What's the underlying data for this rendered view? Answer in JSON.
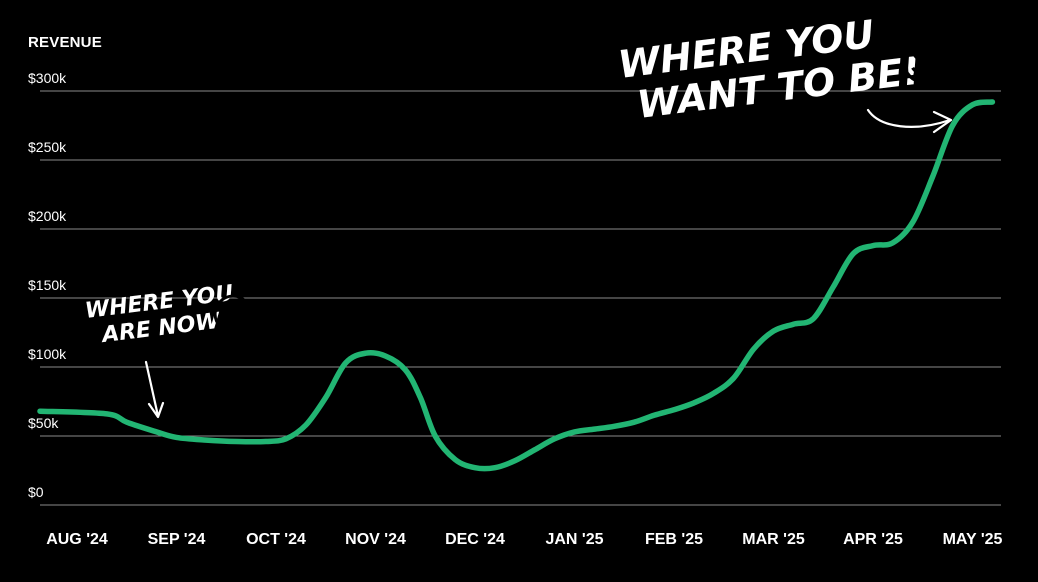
{
  "chart_data": {
    "type": "line",
    "title": "REVENUE",
    "xlabel": "",
    "ylabel": "",
    "ylim": [
      0,
      300000
    ],
    "yticks": [
      0,
      50000,
      100000,
      150000,
      200000,
      250000,
      300000
    ],
    "ytick_labels": [
      "$0",
      "$50k",
      "$100k",
      "$150k",
      "$200k",
      "$250k",
      "$300k"
    ],
    "categories": [
      "AUG '24",
      "SEP '24",
      "OCT '24",
      "NOV '24",
      "DEC '24",
      "JAN '25",
      "FEB '25",
      "MAR '25",
      "APR '25",
      "MAY '25"
    ],
    "grid": true,
    "legend": "none",
    "series": [
      {
        "color": "#22b573",
        "points": [
          [
            0,
            68000
          ],
          [
            0.3,
            66000
          ],
          [
            0.5,
            60000
          ],
          [
            0.8,
            53000
          ],
          [
            1.0,
            49000
          ],
          [
            1.3,
            47000
          ],
          [
            1.6,
            46000
          ],
          [
            1.9,
            46000
          ],
          [
            2.1,
            48000
          ],
          [
            2.3,
            58000
          ],
          [
            2.5,
            78000
          ],
          [
            2.7,
            103000
          ],
          [
            2.9,
            110000
          ],
          [
            3.1,
            108000
          ],
          [
            3.3,
            98000
          ],
          [
            3.45,
            78000
          ],
          [
            3.6,
            50000
          ],
          [
            3.8,
            33000
          ],
          [
            4.0,
            27000
          ],
          [
            4.2,
            27000
          ],
          [
            4.4,
            32000
          ],
          [
            4.6,
            40000
          ],
          [
            4.8,
            48000
          ],
          [
            5.0,
            53000
          ],
          [
            5.2,
            55000
          ],
          [
            5.4,
            57000
          ],
          [
            5.6,
            60000
          ],
          [
            5.8,
            65000
          ],
          [
            6.0,
            69000
          ],
          [
            6.2,
            74000
          ],
          [
            6.4,
            81000
          ],
          [
            6.6,
            92000
          ],
          [
            6.8,
            113000
          ],
          [
            7.0,
            126000
          ],
          [
            7.2,
            131000
          ],
          [
            7.4,
            135000
          ],
          [
            7.6,
            158000
          ],
          [
            7.8,
            182000
          ],
          [
            8.0,
            188000
          ],
          [
            8.2,
            190000
          ],
          [
            8.4,
            205000
          ],
          [
            8.6,
            238000
          ],
          [
            8.8,
            275000
          ],
          [
            9.0,
            290000
          ],
          [
            9.2,
            292000
          ]
        ]
      }
    ],
    "annotations": [
      {
        "lines": [
          "WHERE YOU",
          "ARE NOW"
        ],
        "emoji": "😩"
      },
      {
        "lines": [
          "WHERE YOU",
          "WANT TO BE!"
        ],
        "emoji": "😍"
      }
    ]
  }
}
